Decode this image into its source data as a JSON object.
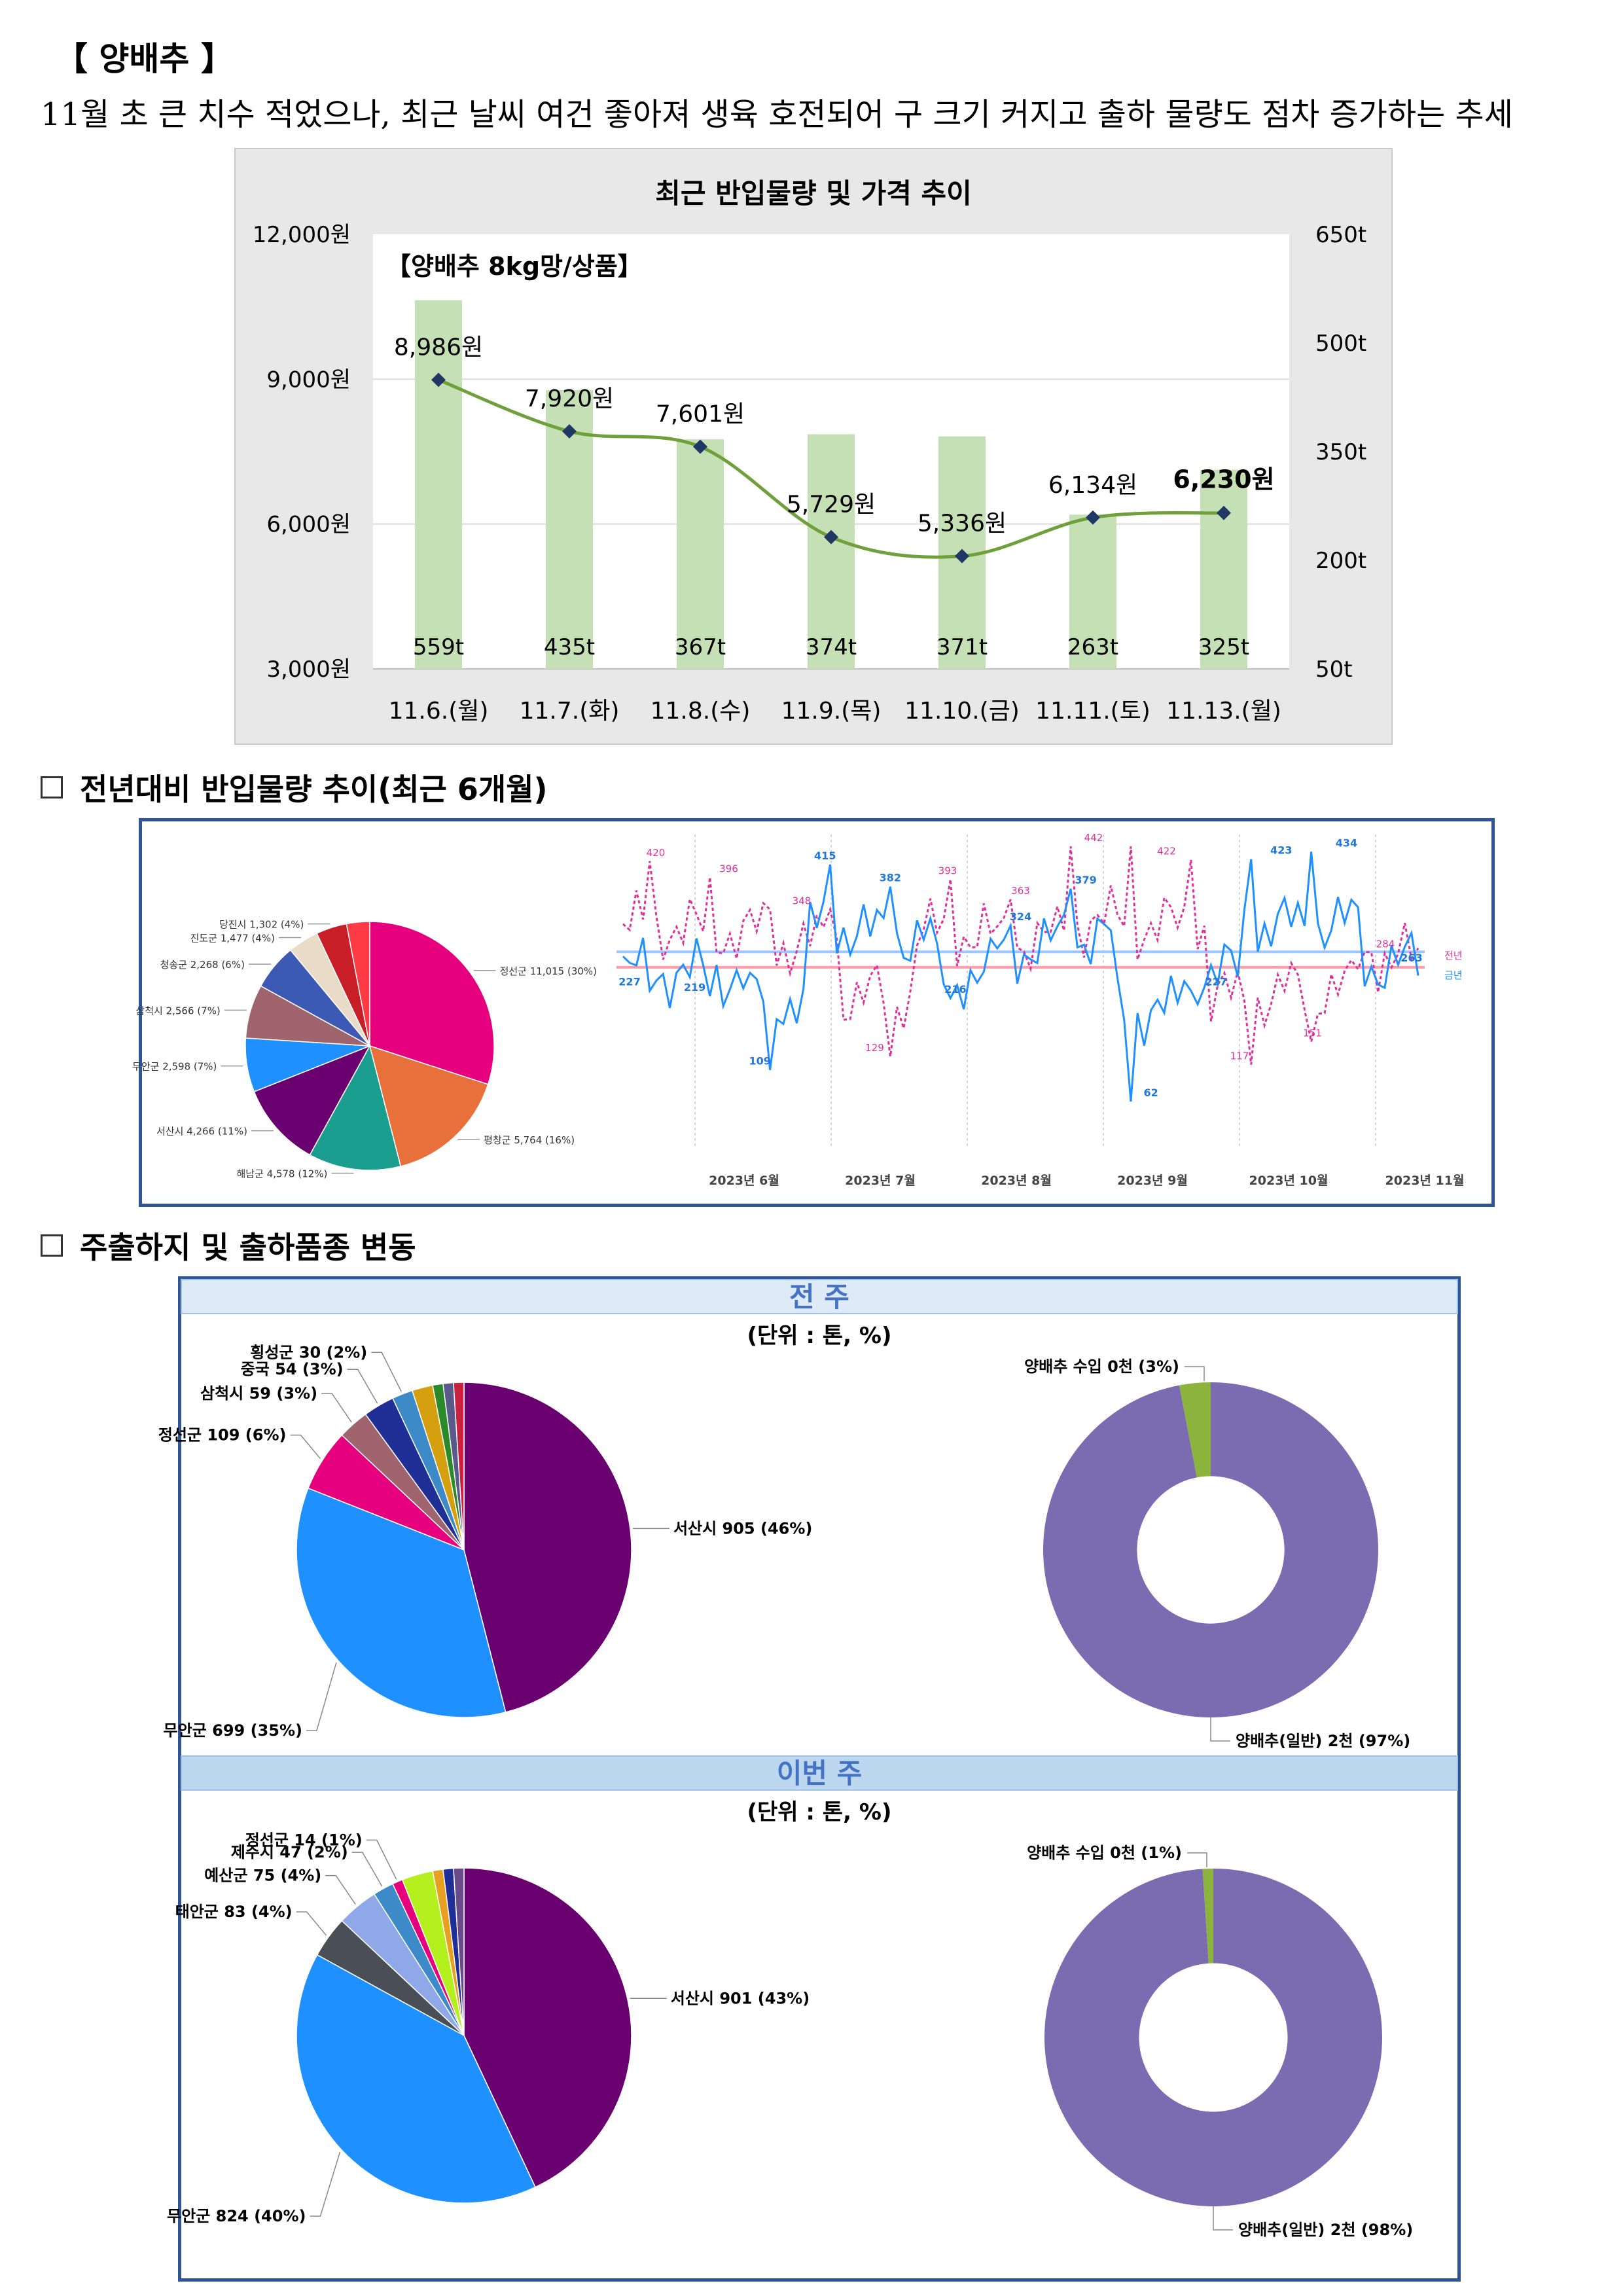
{
  "header": {
    "title": "【 양배추 】",
    "description": "11월 초 큰 치수 적었으나, 최근 날씨 여건 좋아져 생육 호전되어 구 크기 커지고 출하 물량도 점차 증가하는 추세"
  },
  "section_titles": {
    "yoy": "전년대비 반입물량 추이(최근 6개월)",
    "origin": "주출하지 및 출하품종 변동"
  },
  "colors": {
    "bar": "#c5e0b4",
    "price_line": "#70a03c",
    "panel_border": "#2f5597",
    "week_header_prev_bg": "#deebf7",
    "week_header_curr_bg": "#bdd7ee",
    "week_header_text": "#4472c4",
    "this_year_line": "#1e90ff",
    "last_year_line": "#e0309b"
  },
  "chart_data": [
    {
      "type": "bar+line",
      "title": "최근 반입물량 및 가격 추이",
      "subtitle": "【양배추 8kg망/상품】",
      "categories": [
        "11.6.(월)",
        "11.7.(화)",
        "11.8.(수)",
        "11.9.(목)",
        "11.10.(금)",
        "11.11.(토)",
        "11.13.(월)"
      ],
      "series": [
        {
          "values": [
            559,
            435,
            367,
            374,
            371,
            263,
            325
          ],
          "labels": [
            "559t",
            "435t",
            "367t",
            "374t",
            "371t",
            "263t",
            "325t"
          ],
          "axis": "right"
        },
        {
          "values": [
            8986,
            7920,
            7601,
            5729,
            5336,
            6134,
            6230
          ],
          "labels": [
            "8,986원",
            "7,920원",
            "7,601원",
            "5,729원",
            "5,336원",
            "6,134원",
            "6,230원"
          ],
          "axis": "left"
        }
      ],
      "ylim_left": [
        3000,
        12000
      ],
      "yticks_left": [
        "3,000원",
        "6,000원",
        "9,000원",
        "12,000원"
      ],
      "ylim_right": [
        50,
        650
      ],
      "yticks_right": [
        "50t",
        "200t",
        "350t",
        "500t",
        "650t"
      ]
    },
    {
      "type": "pie",
      "slices": [
        {
          "label": "정선군 11,015 (30%)",
          "value": 30,
          "color": "#e6007e"
        },
        {
          "label": "평창군 5,764 (16%)",
          "value": 16,
          "color": "#e8703a"
        },
        {
          "label": "해남군 4,578 (12%)",
          "value": 12,
          "color": "#1a9e8f"
        },
        {
          "label": "서산시 4,266 (11%)",
          "value": 11,
          "color": "#6a0070"
        },
        {
          "label": "무안군 2,598 (7%)",
          "value": 7,
          "color": "#1e90ff"
        },
        {
          "label": "삼척시 2,566 (7%)",
          "value": 7,
          "color": "#a0646e"
        },
        {
          "label": "청송군 2,268 (6%)",
          "value": 6,
          "color": "#3c5ab4"
        },
        {
          "label": "진도군 1,477 (4%)",
          "value": 4,
          "color": "#e8dcc8"
        },
        {
          "label": "당진시 1,302 (4%)",
          "value": 4,
          "color": "#c81e28"
        },
        {
          "label": "",
          "value": 3,
          "color": "#ff3c46"
        }
      ]
    },
    {
      "type": "line",
      "x_ticks": [
        "2023년 6월",
        "2023년 7월",
        "2023년 8월",
        "2023년 9월",
        "2023년 10월",
        "2023년 11월"
      ],
      "series": [
        {
          "name": "금년",
          "color": "#1e90ff"
        },
        {
          "name": "전년",
          "color": "#e0309b"
        }
      ],
      "labeled_points": {
        "this_year": [
          "227",
          "219",
          "109",
          "415",
          "382",
          "216",
          "324",
          "379",
          "62",
          "227",
          "423",
          "434",
          "263"
        ],
        "last_year": [
          "420",
          "396",
          "348",
          "129",
          "393",
          "363",
          "442",
          "422",
          "117",
          "151",
          "284"
        ]
      },
      "note": "Daily series are too dense to read; only the labeled points printed in the image are captured."
    },
    {
      "type": "pie",
      "week": "전 주",
      "unit": "(단위 : 톤, %)",
      "slices": [
        {
          "label": "서산시 905 (46%)",
          "value": 46,
          "color": "#6a0070"
        },
        {
          "label": "무안군 699 (35%)",
          "value": 35,
          "color": "#1e90ff"
        },
        {
          "label": "정선군 109 (6%)",
          "value": 6,
          "color": "#e6007e"
        },
        {
          "label": "삼척시 59 (3%)",
          "value": 3,
          "color": "#a0646e"
        },
        {
          "label": "중국 54 (3%)",
          "value": 3,
          "color": "#1f2f96"
        },
        {
          "label": "횡성군 30 (2%)",
          "value": 2,
          "color": "#3c8ac8"
        },
        {
          "label": "",
          "value": 2,
          "color": "#d4a010"
        },
        {
          "label": "",
          "value": 1,
          "color": "#2a8a2a"
        },
        {
          "label": "",
          "value": 1,
          "color": "#5a5a8a"
        },
        {
          "label": "",
          "value": 1,
          "color": "#cc2040"
        }
      ]
    },
    {
      "type": "pie",
      "week": "전 주",
      "slices": [
        {
          "label": "양배추(일반) 2천 (97%)",
          "value": 97,
          "color": "#7b6bb1"
        },
        {
          "label": "양배추 수입 0천 (3%)",
          "value": 3,
          "color": "#8cb43c"
        }
      ]
    },
    {
      "type": "pie",
      "week": "이번 주",
      "unit": "(단위 : 톤, %)",
      "slices": [
        {
          "label": "서산시 901 (43%)",
          "value": 43,
          "color": "#6a0070"
        },
        {
          "label": "무안군 824 (40%)",
          "value": 40,
          "color": "#1e90ff"
        },
        {
          "label": "태안군 83 (4%)",
          "value": 4,
          "color": "#4a4f57"
        },
        {
          "label": "예산군 75 (4%)",
          "value": 4,
          "color": "#8fa8e8"
        },
        {
          "label": "제주시 47 (2%)",
          "value": 2,
          "color": "#3c8ac8"
        },
        {
          "label": "정선군 14 (1%)",
          "value": 1,
          "color": "#e6007e"
        },
        {
          "label": "",
          "value": 3,
          "color": "#b4f01e"
        },
        {
          "label": "",
          "value": 1,
          "color": "#e8a020"
        },
        {
          "label": "",
          "value": 1,
          "color": "#1f2f96"
        },
        {
          "label": "",
          "value": 1,
          "color": "#6a4a8a"
        }
      ]
    },
    {
      "type": "pie",
      "week": "이번 주",
      "slices": [
        {
          "label": "양배추(일반) 2천 (98%)",
          "value": 98,
          "color": "#7b6bb1"
        },
        {
          "label": "양배추 수입 0천 (1%)",
          "value": 1,
          "color": "#8cb43c"
        }
      ]
    }
  ]
}
